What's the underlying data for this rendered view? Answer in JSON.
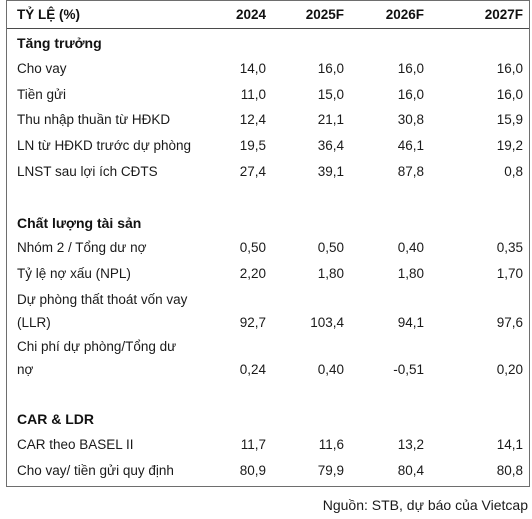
{
  "header": {
    "label": "TỶ LỆ (%)",
    "years": [
      "2024",
      "2025F",
      "2026F",
      "2027F"
    ]
  },
  "sections": [
    {
      "title": "Tăng trưởng",
      "rows": [
        {
          "label": "Cho vay",
          "values": [
            "14,0",
            "16,0",
            "16,0",
            "16,0"
          ]
        },
        {
          "label": "Tiền gửi",
          "values": [
            "11,0",
            "15,0",
            "16,0",
            "16,0"
          ]
        },
        {
          "label": "Thu nhập thuần từ HĐKD",
          "values": [
            "12,4",
            "21,1",
            "30,8",
            "15,9"
          ]
        },
        {
          "label": "LN từ HĐKD trước dự phòng",
          "values": [
            "19,5",
            "36,4",
            "46,1",
            "19,2"
          ]
        },
        {
          "label": "LNST sau lợi ích CĐTS",
          "values": [
            "27,4",
            "39,1",
            "87,8",
            "0,8"
          ]
        }
      ]
    },
    {
      "title": "Chất lượng tài sản",
      "rows": [
        {
          "label": "Nhóm 2 / Tổng dư nợ",
          "values": [
            "0,50",
            "0,50",
            "0,40",
            "0,35"
          ]
        },
        {
          "label": "Tỷ lệ nợ xấu (NPL)",
          "values": [
            "2,20",
            "1,80",
            "1,80",
            "1,70"
          ]
        },
        {
          "label": "Dự phòng thất thoát vốn vay",
          "label2": "(LLR)",
          "values": [
            "92,7",
            "103,4",
            "94,1",
            "97,6"
          ]
        },
        {
          "label": "Chi phí dự phòng/Tổng dư",
          "label2": "nợ",
          "values": [
            "0,24",
            "0,40",
            "-0,51",
            "0,20"
          ]
        }
      ]
    },
    {
      "title": "CAR & LDR",
      "rows": [
        {
          "label": "CAR theo BASEL II",
          "values": [
            "11,7",
            "11,6",
            "13,2",
            "14,1"
          ]
        },
        {
          "label": "Cho vay/ tiền gửi quy định",
          "values": [
            "80,9",
            "79,9",
            "80,4",
            "80,8"
          ]
        }
      ]
    }
  ],
  "source": "Nguồn: STB, dự báo của Vietcap"
}
